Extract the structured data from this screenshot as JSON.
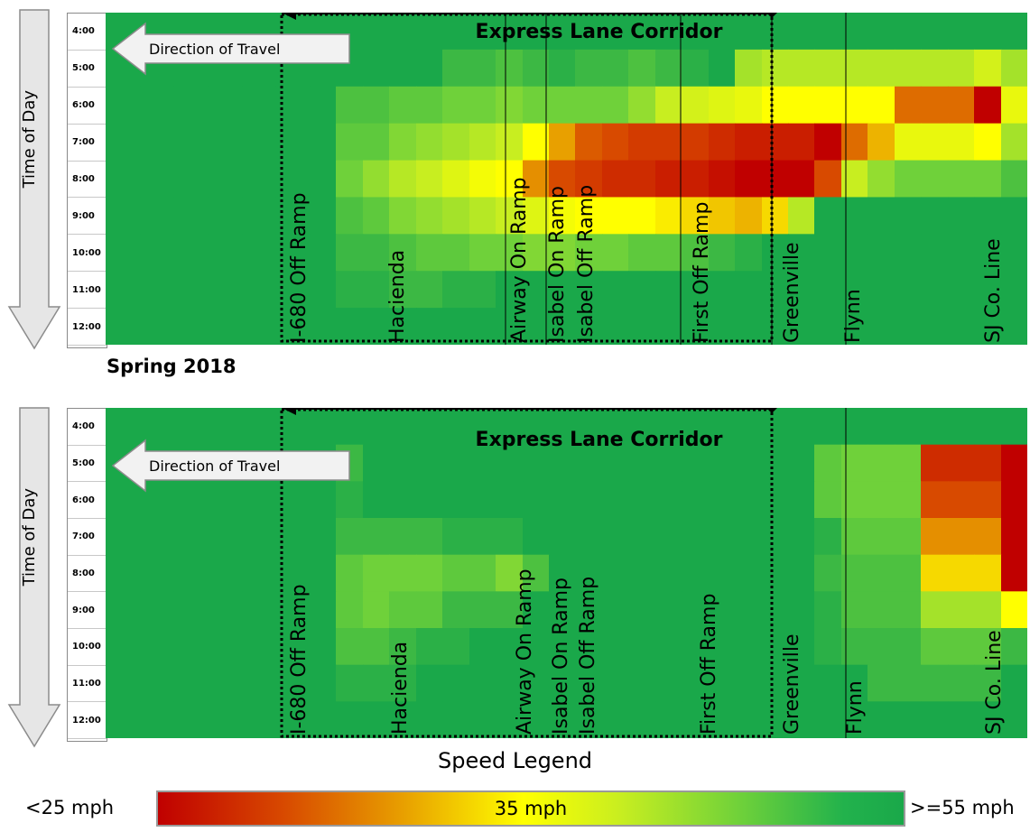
{
  "chart_data": [
    {
      "type": "heatmap",
      "title": "",
      "corridor_label": "Express Lane Corridor",
      "direction_label": "Direction of Travel",
      "ylabel": "Time of Day",
      "time_labels": [
        "4:00",
        "5:00",
        "6:00",
        "7:00",
        "8:00",
        "9:00",
        "10:00",
        "11:00",
        "12:00"
      ],
      "locations": [
        {
          "label": "I-680 Off Ramp"
        },
        {
          "label": "Hacienda"
        },
        {
          "label": "Airway On Ramp"
        },
        {
          "label": "Isabel On Ramp"
        },
        {
          "label": "Isabel Off Ramp"
        },
        {
          "label": "First Off Ramp"
        },
        {
          "label": "Greenville"
        },
        {
          "label": "Flynn"
        },
        {
          "label": "SJ Co. Line"
        }
      ],
      "speed_columns": 33,
      "speed_grid_mph": [
        [
          55,
          55,
          55,
          55,
          55,
          55,
          55,
          55,
          55,
          55,
          55,
          55,
          55,
          55,
          55,
          55,
          55,
          55,
          55,
          55,
          55,
          55,
          55,
          55,
          55,
          55,
          55,
          55,
          55,
          55,
          55,
          55,
          55
        ],
        [
          55,
          55,
          55,
          55,
          55,
          55,
          55,
          55,
          55,
          55,
          55,
          53,
          53,
          52,
          53,
          54,
          53,
          53,
          52,
          53,
          54,
          55,
          47,
          46,
          46,
          46,
          46,
          46,
          46,
          46,
          46,
          44,
          47
        ],
        [
          55,
          55,
          55,
          55,
          55,
          55,
          55,
          52,
          52,
          51,
          51,
          50,
          50,
          49,
          50,
          50,
          50,
          50,
          48,
          45,
          44,
          43,
          42,
          40,
          40,
          40,
          40,
          40,
          32,
          32,
          32,
          25,
          42
        ],
        [
          55,
          55,
          55,
          55,
          55,
          55,
          55,
          51,
          51,
          49,
          48,
          47,
          46,
          45,
          40,
          35,
          31,
          30,
          29,
          29,
          29,
          28,
          27,
          27,
          27,
          25,
          32,
          36,
          42,
          42,
          42,
          40,
          47
        ],
        [
          55,
          55,
          55,
          55,
          55,
          55,
          55,
          50,
          48,
          46,
          45,
          43,
          41,
          40,
          34,
          30,
          29,
          28,
          28,
          27,
          27,
          26,
          25,
          25,
          25,
          30,
          45,
          48,
          50,
          50,
          50,
          50,
          52
        ],
        [
          55,
          55,
          55,
          55,
          55,
          55,
          55,
          52,
          51,
          49,
          48,
          47,
          46,
          45,
          43,
          41,
          40,
          40,
          40,
          39,
          38,
          37,
          36,
          38,
          46,
          55,
          55,
          55,
          55,
          55,
          55,
          55,
          55
        ],
        [
          55,
          55,
          55,
          55,
          55,
          55,
          55,
          53,
          53,
          52,
          51,
          51,
          50,
          50,
          49,
          49,
          50,
          50,
          51,
          51,
          52,
          53,
          54,
          55,
          55,
          55,
          55,
          55,
          55,
          55,
          55,
          55,
          55
        ],
        [
          55,
          55,
          55,
          55,
          55,
          55,
          55,
          54,
          54,
          53,
          53,
          54,
          54,
          55,
          55,
          55,
          55,
          55,
          55,
          55,
          55,
          55,
          55,
          55,
          55,
          55,
          55,
          55,
          55,
          55,
          55,
          55,
          55
        ],
        [
          55,
          55,
          55,
          55,
          55,
          55,
          55,
          55,
          55,
          55,
          55,
          55,
          55,
          55,
          55,
          55,
          55,
          55,
          55,
          55,
          55,
          55,
          55,
          55,
          55,
          55,
          55,
          55,
          55,
          55,
          55,
          55,
          55
        ]
      ]
    },
    {
      "type": "heatmap",
      "title": "Spring 2018",
      "corridor_label": "Express Lane Corridor",
      "direction_label": "Direction of Travel",
      "ylabel": "Time of Day",
      "time_labels": [
        "4:00",
        "5:00",
        "6:00",
        "7:00",
        "8:00",
        "9:00",
        "10:00",
        "11:00",
        "12:00"
      ],
      "locations": [
        {
          "label": "I-680 Off Ramp"
        },
        {
          "label": "Hacienda"
        },
        {
          "label": "Airway On Ramp"
        },
        {
          "label": "Isabel On Ramp"
        },
        {
          "label": "Isabel Off Ramp"
        },
        {
          "label": "First Off Ramp"
        },
        {
          "label": "Greenville"
        },
        {
          "label": "Flynn"
        },
        {
          "label": "SJ Co. Line"
        }
      ],
      "speed_columns": 33,
      "speed_grid_mph": [
        [
          55,
          55,
          55,
          55,
          55,
          55,
          55,
          55,
          55,
          55,
          55,
          55,
          55,
          55,
          55,
          55,
          55,
          55,
          55,
          55,
          55,
          55,
          55,
          55,
          55,
          55,
          55,
          55,
          55,
          55,
          55,
          55,
          55
        ],
        [
          55,
          55,
          55,
          55,
          55,
          55,
          55,
          53,
          55,
          55,
          55,
          55,
          55,
          55,
          55,
          55,
          55,
          55,
          55,
          55,
          55,
          55,
          55,
          55,
          55,
          51,
          50,
          50,
          50,
          28,
          28,
          28,
          25
        ],
        [
          55,
          55,
          55,
          55,
          55,
          55,
          55,
          54,
          55,
          55,
          55,
          55,
          55,
          55,
          55,
          55,
          55,
          55,
          55,
          55,
          55,
          55,
          55,
          55,
          55,
          51,
          50,
          50,
          50,
          30,
          30,
          30,
          25
        ],
        [
          55,
          55,
          55,
          55,
          55,
          55,
          55,
          53,
          53,
          53,
          53,
          54,
          54,
          54,
          55,
          55,
          55,
          55,
          55,
          55,
          55,
          55,
          55,
          55,
          55,
          54,
          51,
          51,
          51,
          34,
          34,
          34,
          25
        ],
        [
          55,
          55,
          55,
          55,
          55,
          55,
          55,
          51,
          50,
          50,
          50,
          51,
          51,
          49,
          52,
          55,
          55,
          55,
          55,
          55,
          55,
          55,
          55,
          55,
          55,
          53,
          52,
          52,
          52,
          38,
          38,
          38,
          25
        ],
        [
          55,
          55,
          55,
          55,
          55,
          55,
          55,
          51,
          50,
          51,
          51,
          53,
          53,
          53,
          55,
          55,
          55,
          55,
          55,
          55,
          55,
          55,
          55,
          55,
          55,
          54,
          52,
          52,
          52,
          47,
          47,
          47,
          40
        ],
        [
          55,
          55,
          55,
          55,
          55,
          55,
          55,
          52,
          52,
          53,
          54,
          54,
          55,
          55,
          55,
          55,
          55,
          55,
          55,
          55,
          55,
          55,
          55,
          55,
          55,
          54,
          53,
          53,
          53,
          51,
          51,
          51,
          53
        ],
        [
          55,
          55,
          55,
          55,
          55,
          55,
          55,
          54,
          54,
          54,
          55,
          55,
          55,
          55,
          55,
          55,
          55,
          55,
          55,
          55,
          55,
          55,
          55,
          55,
          55,
          55,
          55,
          53,
          53,
          53,
          53,
          53,
          55
        ],
        [
          55,
          55,
          55,
          55,
          55,
          55,
          55,
          55,
          55,
          55,
          55,
          55,
          55,
          55,
          55,
          55,
          55,
          55,
          55,
          55,
          55,
          55,
          55,
          55,
          55,
          55,
          55,
          55,
          55,
          55,
          55,
          55,
          55
        ]
      ]
    }
  ],
  "legend": {
    "title": "Speed Legend",
    "min_label": "<25 mph",
    "mid_label": "35 mph",
    "max_label": ">=55 mph",
    "colors": [
      "#c00000",
      "#e8a000",
      "#ffff00",
      "#6fd13a",
      "#1aa84a"
    ]
  }
}
